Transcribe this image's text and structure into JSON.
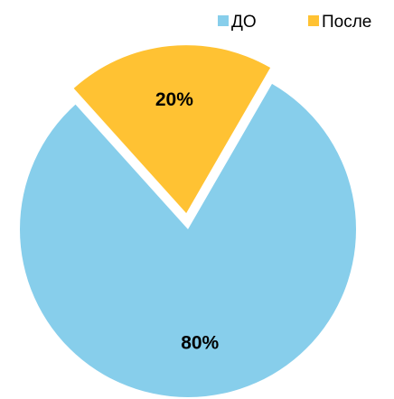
{
  "chart_data": {
    "type": "pie",
    "title": "",
    "slices": [
      {
        "name": "ДО",
        "value": 80,
        "label": "80%",
        "color": "#87CEEB",
        "exploded": false
      },
      {
        "name": "После",
        "value": 20,
        "label": "20%",
        "color": "#FFC233",
        "exploded": true
      }
    ],
    "legend_position": "top-right"
  }
}
